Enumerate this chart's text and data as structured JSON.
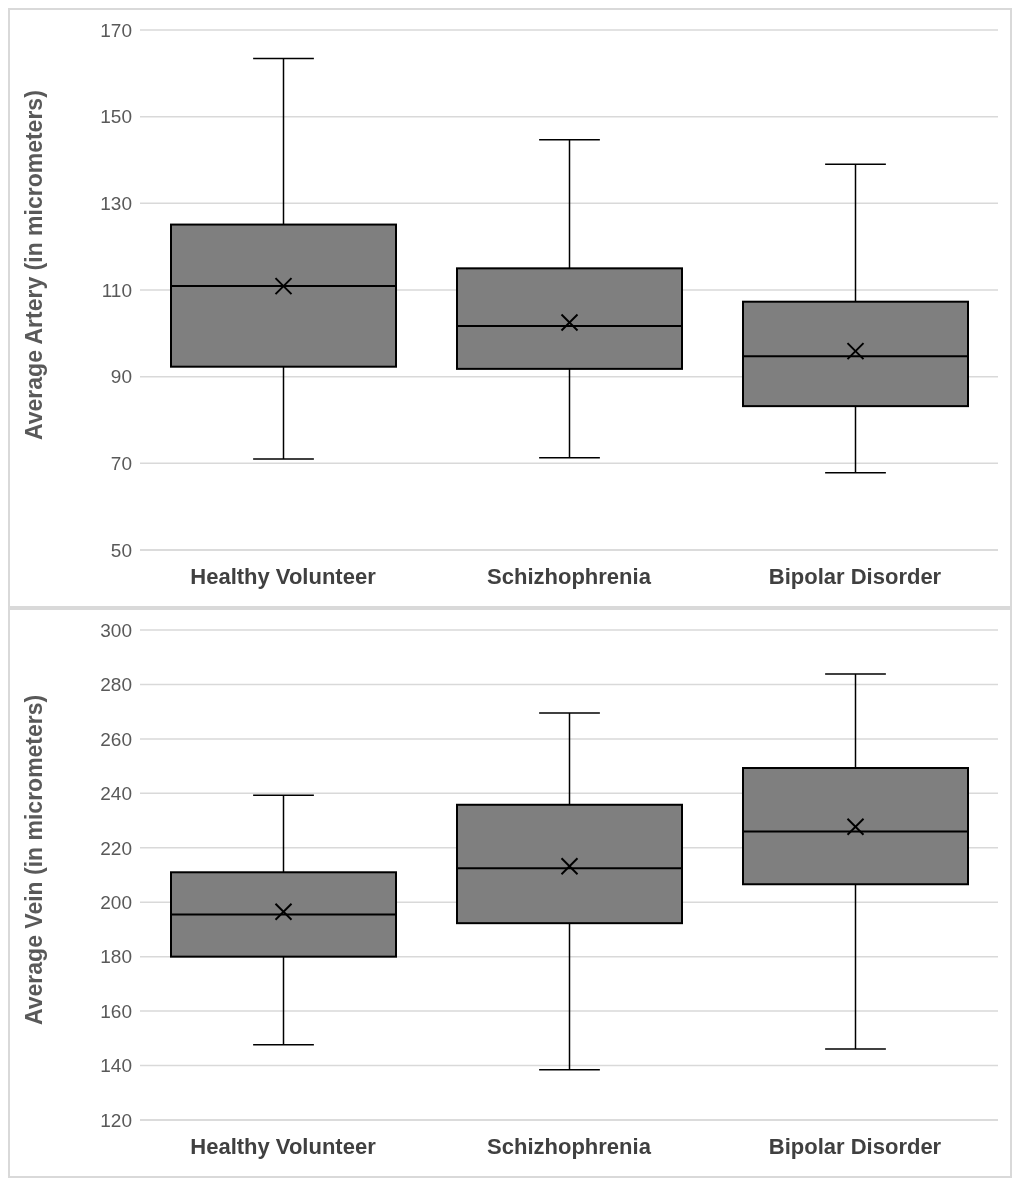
{
  "chart_data": [
    {
      "type": "box",
      "ylabel": "Average Artery (in micrometers)",
      "categories": [
        "Healthy Volunteer",
        "Schizhophrenia",
        "Bipolar Disorder"
      ],
      "color": "#7f7f7f",
      "ylim": [
        50,
        170
      ],
      "yticks": [
        50,
        70,
        90,
        110,
        130,
        150,
        170
      ],
      "grid": "y",
      "boxes": [
        {
          "low": 71,
          "q1": 92.3,
          "median": 110.9,
          "q3": 125.1,
          "high": 163.4,
          "mean": 110.9
        },
        {
          "low": 71.3,
          "q1": 91.8,
          "median": 101.7,
          "q3": 115,
          "high": 144.7,
          "mean": 102.5
        },
        {
          "low": 67.8,
          "q1": 83.2,
          "median": 94.7,
          "q3": 107.3,
          "high": 139,
          "mean": 95.9
        }
      ]
    },
    {
      "type": "box",
      "ylabel": "Average Vein (in micrometers)",
      "categories": [
        "Healthy Volunteer",
        "Schizhophrenia",
        "Bipolar Disorder"
      ],
      "color": "#7f7f7f",
      "ylim": [
        120,
        300
      ],
      "yticks": [
        120,
        140,
        160,
        180,
        200,
        220,
        240,
        260,
        280,
        300
      ],
      "grid": "y",
      "boxes": [
        {
          "low": 147.6,
          "q1": 180,
          "median": 195.5,
          "q3": 211,
          "high": 239.3,
          "mean": 196.5
        },
        {
          "low": 138.5,
          "q1": 192.3,
          "median": 212.5,
          "q3": 235.8,
          "high": 269.5,
          "mean": 213.2
        },
        {
          "low": 146.1,
          "q1": 206.6,
          "median": 226,
          "q3": 249.3,
          "high": 283.8,
          "mean": 227.7
        }
      ]
    }
  ]
}
